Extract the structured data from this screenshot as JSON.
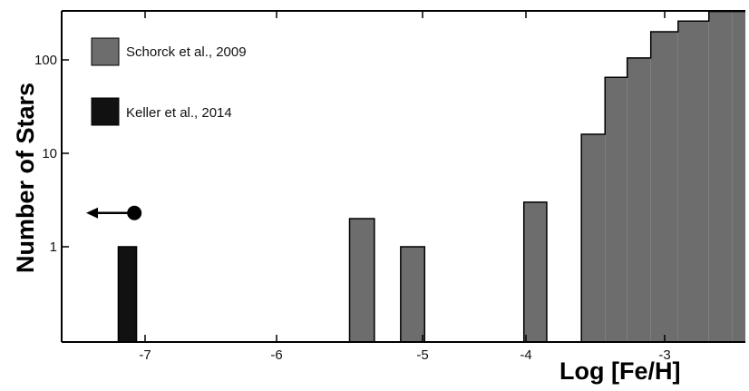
{
  "chart_data": {
    "type": "bar",
    "xlabel": "Log [Fe/H]",
    "ylabel": "Number of Stars",
    "x_ticks": [
      {
        "value": -7,
        "label": "-7"
      },
      {
        "value": -6,
        "label": "-6"
      },
      {
        "value": -5,
        "label": "-5"
      },
      {
        "value": -4,
        "label": "-4"
      },
      {
        "value": -3,
        "label": "-3"
      }
    ],
    "y_scale": "log",
    "y_ticks": [
      {
        "value": 1,
        "label": "1"
      },
      {
        "value": 10,
        "label": "10"
      },
      {
        "value": 100,
        "label": "100"
      }
    ],
    "ylim": [
      0.1,
      330
    ],
    "legend_position": "top-left",
    "series": [
      {
        "name": "Schorck et al., 2009",
        "color": "#6d6d6d",
        "bars": [
          {
            "x0": -5.5,
            "x1": -5.33,
            "value": 2
          },
          {
            "x0": -5.15,
            "x1": -4.98,
            "value": 1
          },
          {
            "x0": -4.02,
            "x1": -3.85,
            "value": 3
          }
        ],
        "step_histogram": {
          "edges": [
            -3.6,
            -3.43,
            -3.27,
            -3.1,
            -2.93,
            -2.77,
            -2.65,
            -2.58
          ],
          "values": [
            16,
            65,
            105,
            200,
            260,
            330,
            330
          ]
        }
      },
      {
        "name": "Keller et al., 2014",
        "color": "#111111",
        "bars": [
          {
            "x0": -7.25,
            "x1": -7.08,
            "value": 1
          }
        ]
      }
    ],
    "annotations": [
      {
        "type": "upper-limit-arrow",
        "x": -7.1,
        "value": 2.3,
        "direction": "left",
        "arrow_to_x": -7.55
      }
    ]
  }
}
